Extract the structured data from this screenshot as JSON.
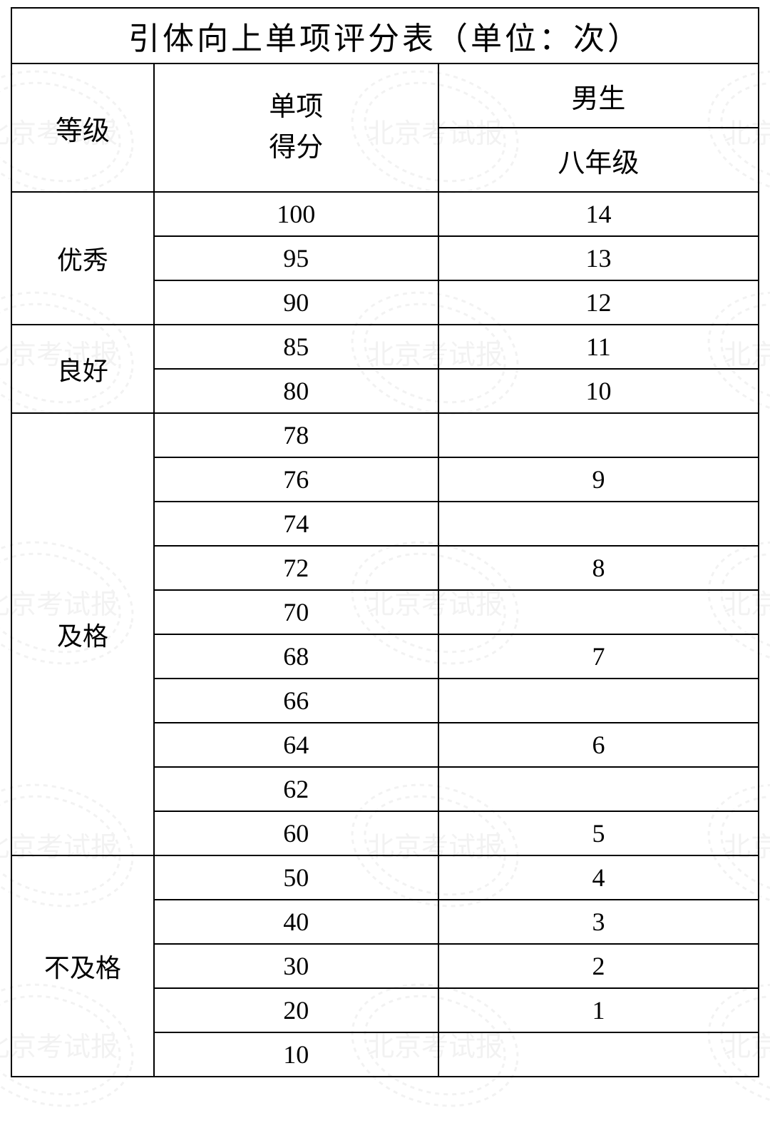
{
  "title": "引体向上单项评分表（单位：次）",
  "headers": {
    "level": "等级",
    "score_line1": "单项",
    "score_line2": "得分",
    "gender": "男生",
    "grade": "八年级"
  },
  "levels": {
    "excellent": "优秀",
    "good": "良好",
    "pass": "及格",
    "fail": "不及格"
  },
  "rows": {
    "r1": {
      "score": "100",
      "val": "14"
    },
    "r2": {
      "score": "95",
      "val": "13"
    },
    "r3": {
      "score": "90",
      "val": "12"
    },
    "r4": {
      "score": "85",
      "val": "11"
    },
    "r5": {
      "score": "80",
      "val": "10"
    },
    "r6": {
      "score": "78",
      "val": ""
    },
    "r7": {
      "score": "76",
      "val": "9"
    },
    "r8": {
      "score": "74",
      "val": ""
    },
    "r9": {
      "score": "72",
      "val": "8"
    },
    "r10": {
      "score": "70",
      "val": ""
    },
    "r11": {
      "score": "68",
      "val": "7"
    },
    "r12": {
      "score": "66",
      "val": ""
    },
    "r13": {
      "score": "64",
      "val": "6"
    },
    "r14": {
      "score": "62",
      "val": ""
    },
    "r15": {
      "score": "60",
      "val": "5"
    },
    "r16": {
      "score": "50",
      "val": "4"
    },
    "r17": {
      "score": "40",
      "val": "3"
    },
    "r18": {
      "score": "30",
      "val": "2"
    },
    "r19": {
      "score": "20",
      "val": "1"
    },
    "r20": {
      "score": "10",
      "val": ""
    }
  },
  "watermark": {
    "text": "北京考试报",
    "color": "#888888"
  },
  "styling": {
    "border_color": "#000000",
    "border_width": 2,
    "background": "#ffffff",
    "title_fontsize": 44,
    "header_fontsize": 38,
    "cell_fontsize": 36,
    "font_family": "SimSun"
  }
}
